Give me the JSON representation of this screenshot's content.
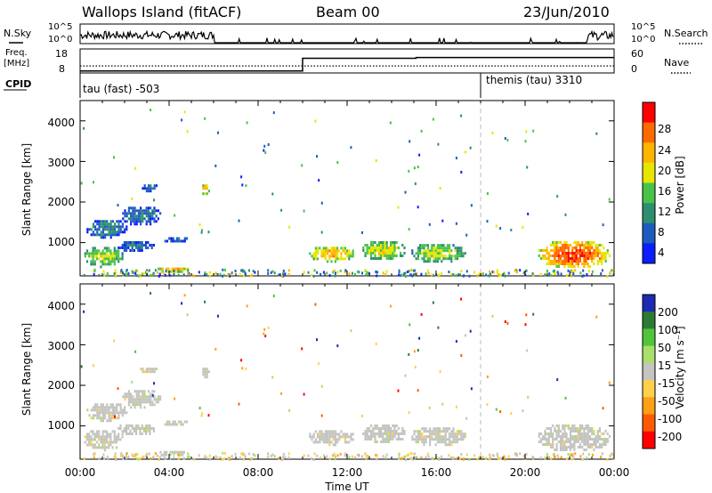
{
  "header": {
    "station": "Wallops Island (fitACF)",
    "beam": "Beam 00",
    "date": "23/Jun/2010"
  },
  "params": {
    "nsky_label": "N.Sky",
    "nsearch_label": "N.Search",
    "freq_label_1": "Freq.",
    "freq_label_2": "[MHz]",
    "nave_label": "Nave",
    "cpid_label": "CPID",
    "nsky_ticks": [
      "10^5",
      "10^0"
    ],
    "nsearch_ticks": [
      "10^5",
      "10^0"
    ],
    "freq_ticks": [
      "18",
      "8"
    ],
    "nave_ticks": [
      "60",
      "0"
    ],
    "cpid_segments": [
      {
        "label": "tau (fast) -503",
        "start_hour": 0
      },
      {
        "label": "themis (tau) 3310",
        "start_hour": 18
      }
    ],
    "freq_steps": [
      {
        "from_hour": 0,
        "to_hour": 10.0,
        "value": 10.3
      },
      {
        "from_hour": 10.0,
        "to_hour": 15.1,
        "value": 15.6
      },
      {
        "from_hour": 15.1,
        "to_hour": 24,
        "value": 15.9
      }
    ],
    "nave_value": 22
  },
  "axes": {
    "x_label": "Time UT",
    "x_ticks": [
      "00:00",
      "04:00",
      "08:00",
      "12:00",
      "16:00",
      "20:00",
      "00:00"
    ],
    "x_range_hours": [
      0,
      24
    ],
    "y_label": "Slant Range [km]",
    "y_ticks": [
      "1000",
      "2000",
      "3000",
      "4000"
    ],
    "y_range_km": [
      180,
      4500
    ]
  },
  "power": {
    "colorbar_label": "Power [dB]",
    "ticks": [
      "28",
      "24",
      "20",
      "16",
      "12",
      "8",
      "4"
    ],
    "colors": [
      "#ff0000",
      "#ff6a00",
      "#ffb400",
      "#e6e600",
      "#49c24a",
      "#2e8f6e",
      "#1e5bbf",
      "#0a1eff"
    ]
  },
  "velocity": {
    "colorbar_label": "Velocity [m s⁻¹]",
    "ticks": [
      "200",
      "100",
      "50",
      "15",
      "-15",
      "-50",
      "-100",
      "-200"
    ],
    "colors": [
      "#1e2ab4",
      "#2d7a36",
      "#52c43c",
      "#a8e06a",
      "#c4c4c0",
      "#ffd04a",
      "#ffa014",
      "#ff5a00",
      "#ff0000"
    ]
  },
  "chart_data": {
    "type": "heatmap",
    "title": "Wallops Island (fitACF)",
    "subtitle": "Beam 00",
    "xlabel": "Time UT",
    "ylabel": "Slant Range [km]",
    "xlim_hours": [
      0,
      24
    ],
    "ylim_km": [
      180,
      4500
    ],
    "patches": [
      {
        "t0": 0.1,
        "t1": 1.9,
        "r0": 430,
        "r1": 960,
        "power": 17,
        "vel": 0
      },
      {
        "t0": 0.2,
        "t1": 2.1,
        "r0": 1150,
        "r1": 1620,
        "power": 10,
        "vel": 0
      },
      {
        "t0": 1.6,
        "t1": 3.3,
        "r0": 780,
        "r1": 1100,
        "power": 8,
        "vel": 0
      },
      {
        "t0": 1.8,
        "t1": 3.6,
        "r0": 1450,
        "r1": 1950,
        "power": 9,
        "vel": 0
      },
      {
        "t0": 2.6,
        "t1": 3.5,
        "r0": 2300,
        "r1": 2500,
        "power": 8,
        "vel": 0
      },
      {
        "t0": 3.4,
        "t1": 4.9,
        "r0": 300,
        "r1": 450,
        "power": 22,
        "vel": 0
      },
      {
        "t0": 3.7,
        "t1": 4.8,
        "r0": 1020,
        "r1": 1200,
        "power": 8,
        "vel": 0
      },
      {
        "t0": 5.4,
        "t1": 5.8,
        "r0": 2200,
        "r1": 2500,
        "power": 21,
        "vel": 0
      },
      {
        "t0": 10.2,
        "t1": 12.3,
        "r0": 560,
        "r1": 960,
        "power": 22,
        "vel": 0
      },
      {
        "t0": 12.6,
        "t1": 14.6,
        "r0": 580,
        "r1": 1100,
        "power": 18,
        "vel": 0
      },
      {
        "t0": 14.8,
        "t1": 17.3,
        "r0": 530,
        "r1": 1030,
        "power": 17,
        "vel": 0
      },
      {
        "t0": 20.5,
        "t1": 23.8,
        "r0": 380,
        "r1": 1100,
        "power": 27,
        "vel": 0
      }
    ]
  }
}
